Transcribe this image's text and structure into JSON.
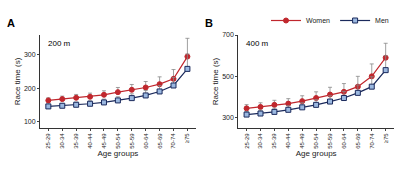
{
  "chart_data": [
    {
      "type": "line",
      "panel": "A",
      "title": "200 m",
      "x_label": "Age groups",
      "y_label": "Race time (s)",
      "categories": [
        "25-29",
        "30-34",
        "35-39",
        "40-44",
        "45-49",
        "50-54",
        "55-59",
        "60-64",
        "65-69",
        "70-74",
        "≥75"
      ],
      "series": [
        {
          "name": "Women",
          "color": "#c0272d",
          "marker": "circle",
          "values": [
            163,
            167,
            171,
            174,
            180,
            188,
            195,
            202,
            212,
            228,
            295
          ],
          "error": [
            8,
            9,
            10,
            11,
            12,
            14,
            16,
            18,
            22,
            28,
            55
          ]
        },
        {
          "name": "Men",
          "color": "#1b2a5c",
          "marker": "square",
          "values": [
            145,
            147,
            150,
            153,
            157,
            163,
            170,
            178,
            190,
            208,
            258
          ],
          "error": [
            7,
            7,
            8,
            9,
            10,
            11,
            13,
            15,
            18,
            24,
            45
          ]
        }
      ],
      "ylim": [
        80,
        360
      ],
      "yticks": [
        100,
        200,
        300
      ],
      "grid": false
    },
    {
      "type": "line",
      "panel": "B",
      "title": "400 m",
      "x_label": "Age groups",
      "y_label": "Race time (s)",
      "categories": [
        "25-29",
        "30-34",
        "35-39",
        "40-44",
        "45-49",
        "50-54",
        "55-59",
        "60-64",
        "65-69",
        "70-74",
        "≥75"
      ],
      "series": [
        {
          "name": "Women",
          "color": "#c0272d",
          "marker": "circle",
          "values": [
            345,
            352,
            362,
            368,
            380,
            395,
            412,
            425,
            450,
            500,
            590
          ],
          "error": [
            18,
            20,
            22,
            24,
            26,
            30,
            35,
            40,
            50,
            60,
            70
          ]
        },
        {
          "name": "Men",
          "color": "#1b2a5c",
          "marker": "square",
          "values": [
            315,
            320,
            328,
            338,
            350,
            362,
            378,
            395,
            420,
            450,
            530
          ],
          "error": [
            15,
            16,
            18,
            20,
            22,
            25,
            28,
            32,
            38,
            48,
            70
          ]
        }
      ],
      "ylim": [
        250,
        700
      ],
      "yticks": [
        300,
        500,
        700
      ],
      "grid": false,
      "legend": "upper right"
    }
  ]
}
